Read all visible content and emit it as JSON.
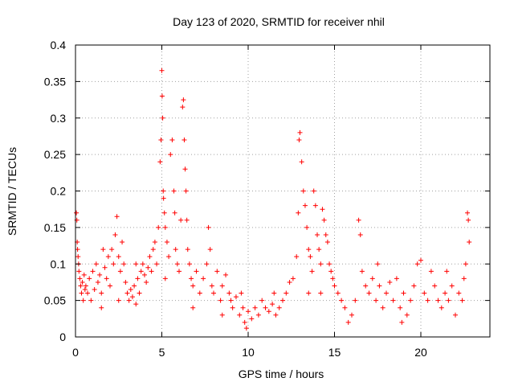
{
  "chart_data": {
    "type": "scatter",
    "title": "Day 123 of 2020, SRMTID for receiver nhil",
    "xlabel": "GPS time / hours",
    "ylabel": "SRMTID / TECUs",
    "xlim": [
      0,
      24
    ],
    "ylim": [
      0,
      0.4
    ],
    "x_ticks": [
      0,
      5,
      10,
      15,
      20
    ],
    "x_tick_labels": [
      "0",
      "5",
      "10",
      "15",
      "20"
    ],
    "y_ticks": [
      0,
      0.05,
      0.1,
      0.15,
      0.2,
      0.25,
      0.3,
      0.35,
      0.4
    ],
    "y_tick_labels": [
      "0",
      "0.05",
      "0.1",
      "0.15",
      "0.2",
      "0.25",
      "0.3",
      "0.35",
      "0.4"
    ],
    "grid": true,
    "marker": "+",
    "marker_color": "#ff0000",
    "series": [
      {
        "name": "SRMTID",
        "points": [
          [
            0.05,
            0.17
          ],
          [
            0.08,
            0.16
          ],
          [
            0.1,
            0.13
          ],
          [
            0.12,
            0.12
          ],
          [
            0.15,
            0.11
          ],
          [
            0.18,
            0.1
          ],
          [
            0.2,
            0.09
          ],
          [
            0.25,
            0.08
          ],
          [
            0.3,
            0.07
          ],
          [
            0.35,
            0.06
          ],
          [
            0.4,
            0.075
          ],
          [
            0.45,
            0.05
          ],
          [
            0.5,
            0.085
          ],
          [
            0.55,
            0.065
          ],
          [
            0.6,
            0.07
          ],
          [
            0.7,
            0.06
          ],
          [
            0.8,
            0.08
          ],
          [
            0.9,
            0.05
          ],
          [
            1.0,
            0.09
          ],
          [
            1.1,
            0.065
          ],
          [
            1.2,
            0.1
          ],
          [
            1.3,
            0.075
          ],
          [
            1.4,
            0.085
          ],
          [
            1.5,
            0.06
          ],
          [
            1.6,
            0.12
          ],
          [
            1.7,
            0.095
          ],
          [
            1.8,
            0.08
          ],
          [
            1.9,
            0.11
          ],
          [
            2.0,
            0.07
          ],
          [
            2.1,
            0.12
          ],
          [
            2.2,
            0.1
          ],
          [
            2.3,
            0.14
          ],
          [
            2.4,
            0.165
          ],
          [
            2.5,
            0.11
          ],
          [
            2.6,
            0.09
          ],
          [
            2.7,
            0.13
          ],
          [
            2.8,
            0.1
          ],
          [
            2.9,
            0.075
          ],
          [
            3.0,
            0.06
          ],
          [
            3.1,
            0.05
          ],
          [
            3.2,
            0.065
          ],
          [
            3.3,
            0.055
          ],
          [
            3.4,
            0.07
          ],
          [
            3.5,
            0.045
          ],
          [
            3.6,
            0.08
          ],
          [
            3.7,
            0.06
          ],
          [
            3.8,
            0.09
          ],
          [
            3.9,
            0.1
          ],
          [
            4.0,
            0.085
          ],
          [
            4.1,
            0.075
          ],
          [
            4.2,
            0.095
          ],
          [
            4.3,
            0.11
          ],
          [
            4.4,
            0.09
          ],
          [
            4.5,
            0.12
          ],
          [
            4.6,
            0.13
          ],
          [
            4.7,
            0.1
          ],
          [
            4.8,
            0.15
          ],
          [
            4.9,
            0.24
          ],
          [
            4.95,
            0.27
          ],
          [
            5.0,
            0.365
          ],
          [
            5.02,
            0.33
          ],
          [
            5.05,
            0.3
          ],
          [
            5.08,
            0.2
          ],
          [
            5.1,
            0.19
          ],
          [
            5.15,
            0.17
          ],
          [
            5.2,
            0.15
          ],
          [
            5.3,
            0.13
          ],
          [
            5.4,
            0.11
          ],
          [
            5.5,
            0.25
          ],
          [
            5.6,
            0.27
          ],
          [
            5.7,
            0.2
          ],
          [
            5.75,
            0.17
          ],
          [
            5.8,
            0.12
          ],
          [
            5.9,
            0.1
          ],
          [
            6.0,
            0.09
          ],
          [
            6.1,
            0.16
          ],
          [
            6.2,
            0.315
          ],
          [
            6.25,
            0.325
          ],
          [
            6.3,
            0.27
          ],
          [
            6.35,
            0.23
          ],
          [
            6.4,
            0.2
          ],
          [
            6.45,
            0.16
          ],
          [
            6.5,
            0.12
          ],
          [
            6.6,
            0.1
          ],
          [
            6.7,
            0.08
          ],
          [
            6.8,
            0.07
          ],
          [
            7.0,
            0.09
          ],
          [
            7.2,
            0.06
          ],
          [
            7.4,
            0.08
          ],
          [
            7.6,
            0.1
          ],
          [
            7.7,
            0.15
          ],
          [
            7.8,
            0.12
          ],
          [
            7.9,
            0.07
          ],
          [
            8.0,
            0.06
          ],
          [
            8.2,
            0.09
          ],
          [
            8.4,
            0.05
          ],
          [
            8.5,
            0.07
          ],
          [
            8.7,
            0.085
          ],
          [
            8.9,
            0.06
          ],
          [
            9.0,
            0.05
          ],
          [
            9.1,
            0.04
          ],
          [
            9.3,
            0.055
          ],
          [
            9.5,
            0.03
          ],
          [
            9.7,
            0.04
          ],
          [
            9.8,
            0.02
          ],
          [
            9.9,
            0.012
          ],
          [
            10.0,
            0.035
          ],
          [
            10.2,
            0.025
          ],
          [
            10.4,
            0.04
          ],
          [
            10.6,
            0.03
          ],
          [
            10.8,
            0.05
          ],
          [
            11.0,
            0.04
          ],
          [
            11.2,
            0.035
          ],
          [
            11.4,
            0.045
          ],
          [
            11.6,
            0.03
          ],
          [
            11.8,
            0.04
          ],
          [
            12.0,
            0.05
          ],
          [
            12.2,
            0.06
          ],
          [
            12.4,
            0.075
          ],
          [
            12.6,
            0.08
          ],
          [
            12.8,
            0.11
          ],
          [
            12.9,
            0.17
          ],
          [
            12.95,
            0.27
          ],
          [
            13.0,
            0.28
          ],
          [
            13.1,
            0.24
          ],
          [
            13.2,
            0.2
          ],
          [
            13.3,
            0.18
          ],
          [
            13.4,
            0.15
          ],
          [
            13.5,
            0.12
          ],
          [
            13.6,
            0.11
          ],
          [
            13.7,
            0.09
          ],
          [
            13.8,
            0.2
          ],
          [
            13.9,
            0.18
          ],
          [
            14.0,
            0.14
          ],
          [
            14.1,
            0.12
          ],
          [
            14.2,
            0.1
          ],
          [
            14.3,
            0.175
          ],
          [
            14.4,
            0.16
          ],
          [
            14.5,
            0.14
          ],
          [
            14.6,
            0.13
          ],
          [
            14.7,
            0.1
          ],
          [
            14.8,
            0.09
          ],
          [
            14.9,
            0.08
          ],
          [
            15.0,
            0.07
          ],
          [
            15.2,
            0.06
          ],
          [
            15.4,
            0.05
          ],
          [
            15.6,
            0.04
          ],
          [
            15.8,
            0.02
          ],
          [
            16.0,
            0.03
          ],
          [
            16.2,
            0.05
          ],
          [
            16.4,
            0.16
          ],
          [
            16.5,
            0.14
          ],
          [
            16.6,
            0.09
          ],
          [
            16.8,
            0.07
          ],
          [
            17.0,
            0.06
          ],
          [
            17.2,
            0.08
          ],
          [
            17.4,
            0.05
          ],
          [
            17.6,
            0.07
          ],
          [
            17.8,
            0.04
          ],
          [
            18.0,
            0.06
          ],
          [
            18.2,
            0.075
          ],
          [
            18.4,
            0.05
          ],
          [
            18.6,
            0.08
          ],
          [
            18.8,
            0.04
          ],
          [
            19.0,
            0.06
          ],
          [
            19.2,
            0.03
          ],
          [
            19.4,
            0.05
          ],
          [
            19.6,
            0.07
          ],
          [
            19.8,
            0.1
          ],
          [
            20.0,
            0.105
          ],
          [
            20.2,
            0.06
          ],
          [
            20.4,
            0.05
          ],
          [
            20.6,
            0.09
          ],
          [
            20.8,
            0.07
          ],
          [
            21.0,
            0.05
          ],
          [
            21.2,
            0.04
          ],
          [
            21.4,
            0.06
          ],
          [
            21.6,
            0.05
          ],
          [
            21.8,
            0.07
          ],
          [
            22.0,
            0.03
          ],
          [
            22.2,
            0.06
          ],
          [
            22.4,
            0.05
          ],
          [
            22.5,
            0.08
          ],
          [
            22.6,
            0.1
          ],
          [
            22.7,
            0.17
          ],
          [
            22.75,
            0.16
          ],
          [
            22.8,
            0.13
          ],
          [
            5.2,
            0.08
          ],
          [
            6.8,
            0.04
          ],
          [
            13.5,
            0.06
          ],
          [
            14.2,
            0.06
          ],
          [
            17.5,
            0.1
          ],
          [
            18.9,
            0.02
          ],
          [
            21.5,
            0.09
          ],
          [
            11.5,
            0.06
          ],
          [
            8.5,
            0.03
          ],
          [
            3.5,
            0.1
          ],
          [
            1.5,
            0.04
          ],
          [
            2.5,
            0.05
          ],
          [
            9.6,
            0.06
          ]
        ]
      }
    ]
  }
}
